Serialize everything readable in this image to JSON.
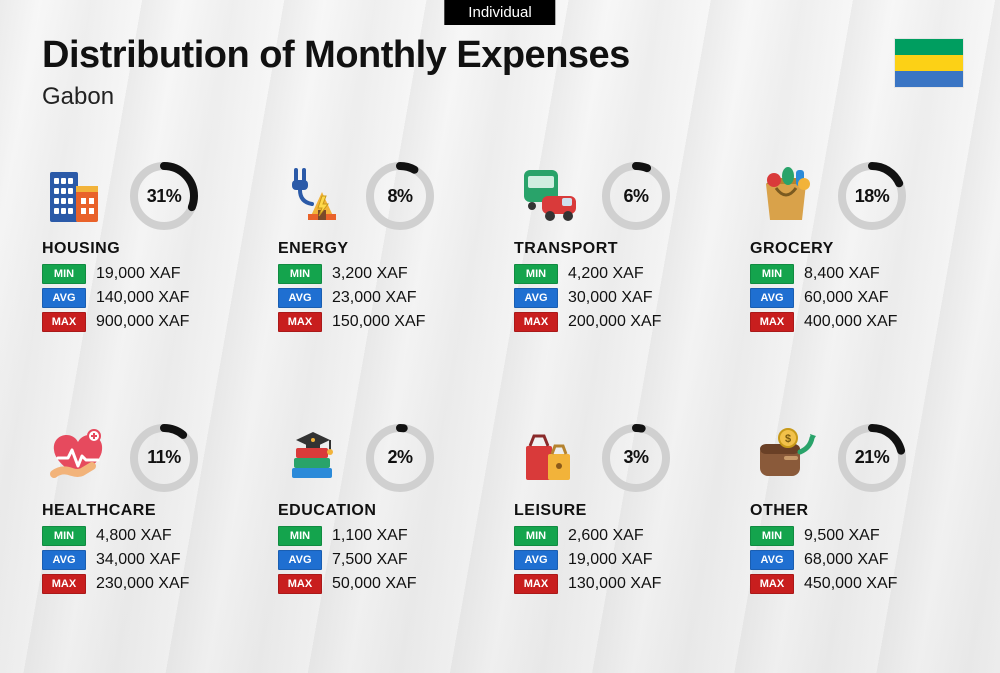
{
  "top_tag": "Individual",
  "title": "Distribution of Monthly Expenses",
  "subtitle": "Gabon",
  "flag_colors": {
    "top": "#009e60",
    "middle": "#fcd116",
    "bottom": "#3a75c4"
  },
  "donut": {
    "track_color": "#d0d0d0",
    "fill_color": "#111111",
    "stroke_width": 8,
    "radius": 30
  },
  "tag_colors": {
    "min": "#14a44d",
    "avg": "#1f6fd1",
    "max": "#c81e1e"
  },
  "tag_labels": {
    "min": "MIN",
    "avg": "AVG",
    "max": "MAX"
  },
  "categories": [
    {
      "id": "housing",
      "name": "HOUSING",
      "percent": 31,
      "min": "19,000 XAF",
      "avg": "140,000 XAF",
      "max": "900,000 XAF",
      "icon": "buildings"
    },
    {
      "id": "energy",
      "name": "ENERGY",
      "percent": 8,
      "min": "3,200 XAF",
      "avg": "23,000 XAF",
      "max": "150,000 XAF",
      "icon": "energy"
    },
    {
      "id": "transport",
      "name": "TRANSPORT",
      "percent": 6,
      "min": "4,200 XAF",
      "avg": "30,000 XAF",
      "max": "200,000 XAF",
      "icon": "transport"
    },
    {
      "id": "grocery",
      "name": "GROCERY",
      "percent": 18,
      "min": "8,400 XAF",
      "avg": "60,000 XAF",
      "max": "400,000 XAF",
      "icon": "grocery"
    },
    {
      "id": "healthcare",
      "name": "HEALTHCARE",
      "percent": 11,
      "min": "4,800 XAF",
      "avg": "34,000 XAF",
      "max": "230,000 XAF",
      "icon": "healthcare"
    },
    {
      "id": "education",
      "name": "EDUCATION",
      "percent": 2,
      "min": "1,100 XAF",
      "avg": "7,500 XAF",
      "max": "50,000 XAF",
      "icon": "education"
    },
    {
      "id": "leisure",
      "name": "LEISURE",
      "percent": 3,
      "min": "2,600 XAF",
      "avg": "19,000 XAF",
      "max": "130,000 XAF",
      "icon": "leisure"
    },
    {
      "id": "other",
      "name": "OTHER",
      "percent": 21,
      "min": "9,500 XAF",
      "avg": "68,000 XAF",
      "max": "450,000 XAF",
      "icon": "other"
    }
  ]
}
